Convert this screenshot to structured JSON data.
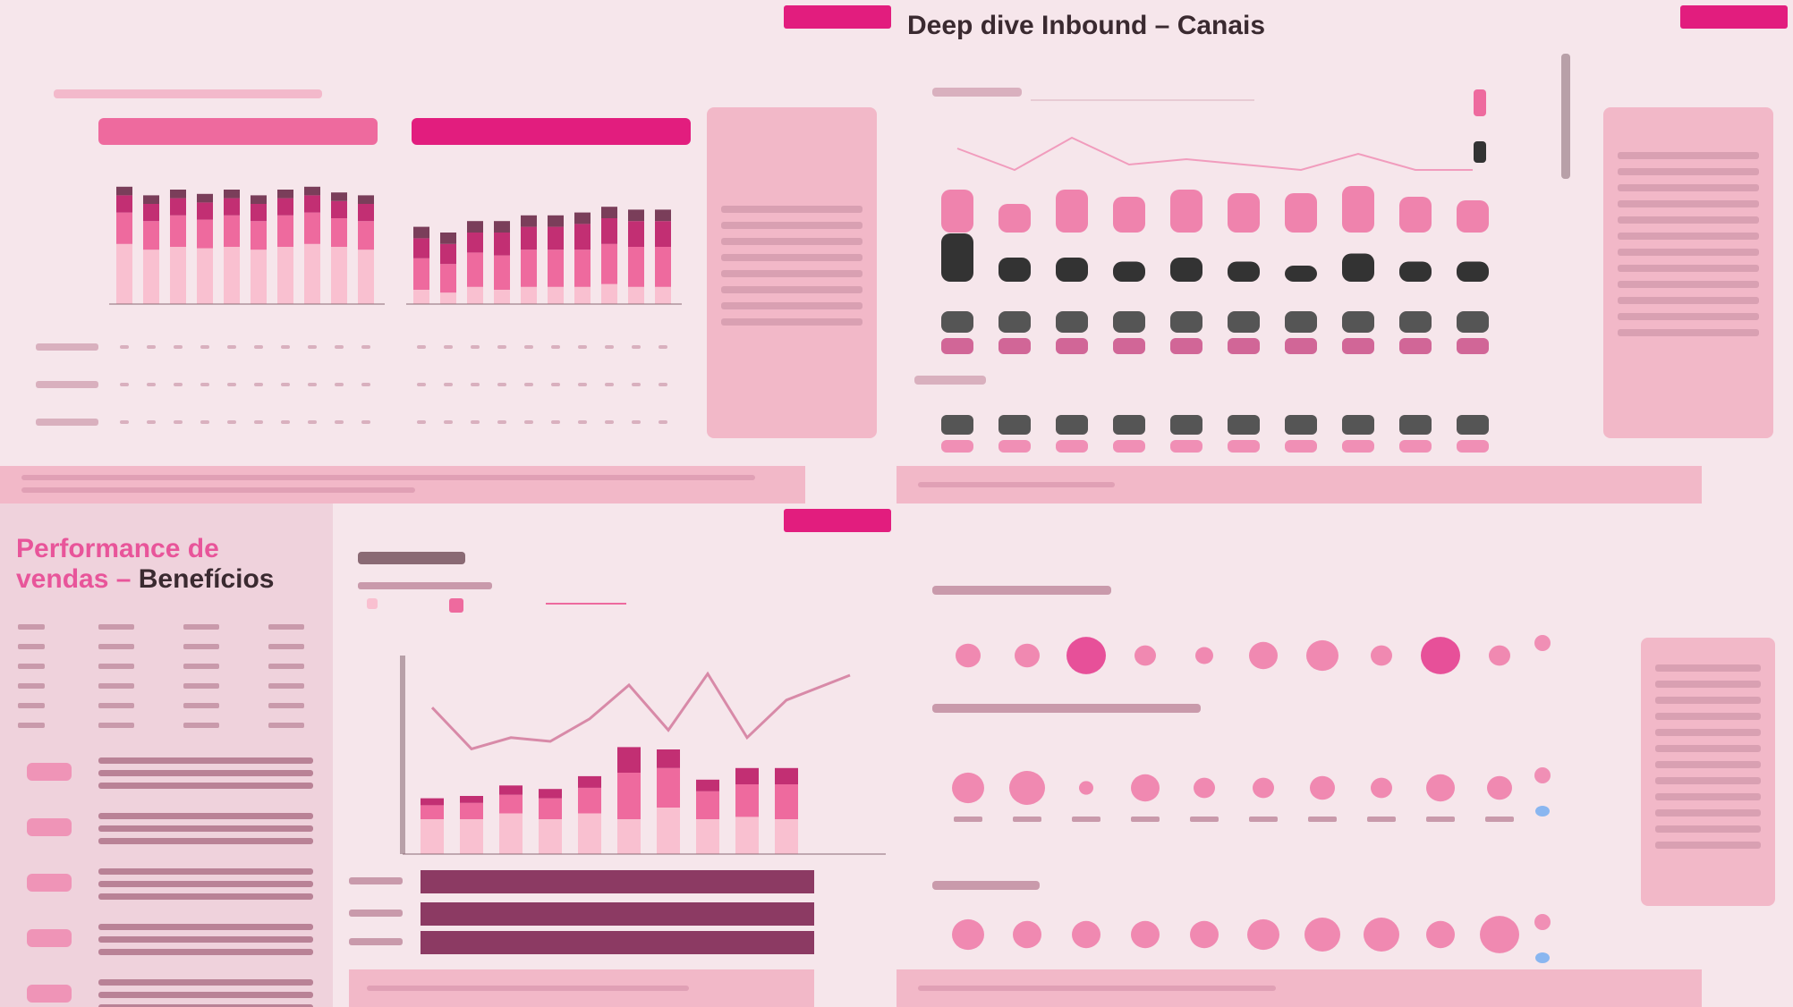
{
  "panels": {
    "p1": {
      "title": "",
      "chart_series_colors": [
        "#f9c0d0",
        "#ee6a9e",
        "#c22f73",
        "#7a3e5a"
      ]
    },
    "p2": {
      "title": "Deep dive Inbound – Canais"
    },
    "p3": {
      "title_line1": "Performance de",
      "title_line2": "vendas –",
      "title_line3": "Benefícios"
    },
    "p4": {
      "title": ""
    }
  },
  "colors": {
    "accent": "#e21d7e",
    "light_pink": "#f9c0d0",
    "mid_pink": "#ee6a9e",
    "dark_pink": "#c22f73",
    "plum": "#7a3e5a",
    "charcoal": "#333333",
    "blue": "#8ab6f0",
    "background": "#f6e6eb",
    "note_bg": "#f2b8c8"
  },
  "chart_data": [
    {
      "type": "bar",
      "panel": "p1-left",
      "series": [
        {
          "values": [
            42,
            38,
            40,
            39,
            40,
            38,
            40,
            42,
            40,
            38
          ]
        },
        {
          "values": [
            22,
            20,
            22,
            20,
            22,
            20,
            22,
            22,
            20,
            20
          ]
        },
        {
          "values": [
            12,
            12,
            12,
            12,
            12,
            12,
            12,
            12,
            12,
            12
          ]
        },
        {
          "values": [
            6,
            6,
            6,
            6,
            6,
            6,
            6,
            6,
            6,
            6
          ]
        }
      ]
    },
    {
      "type": "bar",
      "panel": "p1-right",
      "series": [
        {
          "values": [
            10,
            8,
            12,
            10,
            12,
            12,
            12,
            14,
            12,
            12
          ]
        },
        {
          "values": [
            22,
            20,
            24,
            24,
            26,
            26,
            26,
            28,
            28,
            28
          ]
        },
        {
          "values": [
            14,
            14,
            14,
            16,
            16,
            16,
            18,
            18,
            18,
            18
          ]
        },
        {
          "values": [
            8,
            8,
            8,
            8,
            8,
            8,
            8,
            8,
            8,
            8
          ]
        }
      ]
    },
    {
      "type": "bar",
      "panel": "p2",
      "series": [
        {
          "values": [
            60,
            40,
            60,
            50,
            60,
            55,
            55,
            65,
            50,
            45
          ]
        },
        {
          "values": [
            60,
            30,
            30,
            25,
            30,
            25,
            20,
            35,
            25,
            25
          ]
        }
      ],
      "line": [
        70,
        50,
        80,
        55,
        60,
        55,
        50,
        65,
        50,
        50
      ]
    },
    {
      "type": "bar",
      "panel": "p3",
      "series": [
        {
          "values": [
            30,
            30,
            35,
            30,
            35,
            30,
            40,
            30,
            32,
            30
          ]
        },
        {
          "values": [
            12,
            14,
            16,
            18,
            22,
            40,
            34,
            24,
            28,
            30
          ]
        },
        {
          "values": [
            6,
            6,
            8,
            8,
            10,
            22,
            16,
            10,
            14,
            14
          ]
        }
      ],
      "line": [
        78,
        56,
        62,
        60,
        72,
        90,
        66,
        96,
        62,
        82
      ]
    },
    {
      "type": "scatter",
      "panel": "p4",
      "rows": [
        {
          "sizes": [
            14,
            14,
            22,
            12,
            10,
            16,
            18,
            12,
            22,
            12
          ]
        },
        {
          "sizes": [
            18,
            20,
            8,
            16,
            12,
            12,
            14,
            12,
            16,
            14
          ]
        },
        {
          "sizes": [
            18,
            16,
            16,
            16,
            16,
            18,
            20,
            20,
            16,
            22
          ]
        }
      ]
    }
  ]
}
